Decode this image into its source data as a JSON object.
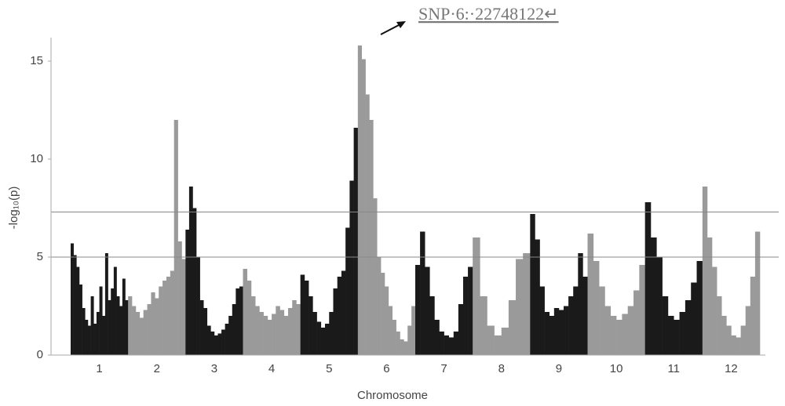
{
  "chart_data": {
    "type": "manhattan",
    "annotation": "SNP·6:·22748122↵",
    "xlabel": "Chromosome",
    "ylabel": "-log₁₀(p)",
    "ylim": [
      0,
      16.2
    ],
    "yticks": [
      0,
      5,
      10,
      15
    ],
    "hlines": [
      7.3,
      5
    ],
    "series": [
      {
        "name": "1",
        "color": "#1a1a1a",
        "values": [
          5.7,
          5.1,
          4.5,
          3.6,
          2.4,
          1.8,
          1.5,
          3.0,
          1.6,
          2.2,
          3.5,
          2.0,
          5.2,
          2.8,
          3.4,
          4.5,
          3.0,
          2.5,
          3.9,
          2.8
        ]
      },
      {
        "name": "2",
        "color": "#9a9a9a",
        "values": [
          3.0,
          2.5,
          2.2,
          1.9,
          2.3,
          2.6,
          3.2,
          2.9,
          3.5,
          3.8,
          4.0,
          4.3,
          12.0,
          5.8,
          4.9
        ]
      },
      {
        "name": "3",
        "color": "#1a1a1a",
        "values": [
          6.4,
          8.6,
          7.5,
          5.0,
          2.8,
          2.4,
          1.5,
          1.2,
          1.0,
          1.1,
          1.3,
          1.6,
          2.0,
          2.6,
          3.4,
          3.5
        ]
      },
      {
        "name": "4",
        "color": "#9a9a9a",
        "values": [
          4.4,
          3.8,
          3.0,
          2.5,
          2.2,
          2.0,
          1.8,
          2.1,
          2.5,
          2.3,
          2.0,
          2.4,
          2.8,
          2.6
        ]
      },
      {
        "name": "5",
        "color": "#1a1a1a",
        "values": [
          4.1,
          3.8,
          3.0,
          2.2,
          1.7,
          1.4,
          1.6,
          2.2,
          3.4,
          4.0,
          4.3,
          6.5,
          8.9,
          11.6
        ]
      },
      {
        "name": "6",
        "color": "#9a9a9a",
        "values": [
          15.8,
          15.1,
          13.3,
          12.0,
          8.0,
          5.0,
          4.2,
          3.5,
          2.5,
          1.8,
          1.2,
          0.8,
          0.7,
          1.5,
          2.5
        ]
      },
      {
        "name": "7",
        "color": "#1a1a1a",
        "values": [
          4.6,
          6.3,
          4.5,
          3.0,
          1.8,
          1.2,
          1.0,
          0.9,
          1.2,
          2.6,
          4.0,
          4.5
        ]
      },
      {
        "name": "8",
        "color": "#9a9a9a",
        "values": [
          6.0,
          3.0,
          1.5,
          1.0,
          1.4,
          2.8,
          4.9,
          5.2
        ]
      },
      {
        "name": "9",
        "color": "#1a1a1a",
        "values": [
          7.2,
          5.9,
          3.5,
          2.2,
          2.0,
          2.4,
          2.3,
          2.5,
          3.0,
          3.5,
          5.2,
          4.0
        ]
      },
      {
        "name": "10",
        "color": "#9a9a9a",
        "values": [
          6.2,
          4.8,
          3.5,
          2.5,
          2.0,
          1.8,
          2.1,
          2.5,
          3.3,
          4.6
        ]
      },
      {
        "name": "11",
        "color": "#1a1a1a",
        "values": [
          7.8,
          6.0,
          5.0,
          3.0,
          2.0,
          1.8,
          2.2,
          2.8,
          3.7,
          4.8
        ]
      },
      {
        "name": "12",
        "color": "#9a9a9a",
        "values": [
          8.6,
          6.0,
          4.5,
          3.0,
          2.0,
          1.5,
          1.0,
          0.9,
          1.5,
          2.5,
          4.0,
          6.3
        ]
      }
    ]
  }
}
